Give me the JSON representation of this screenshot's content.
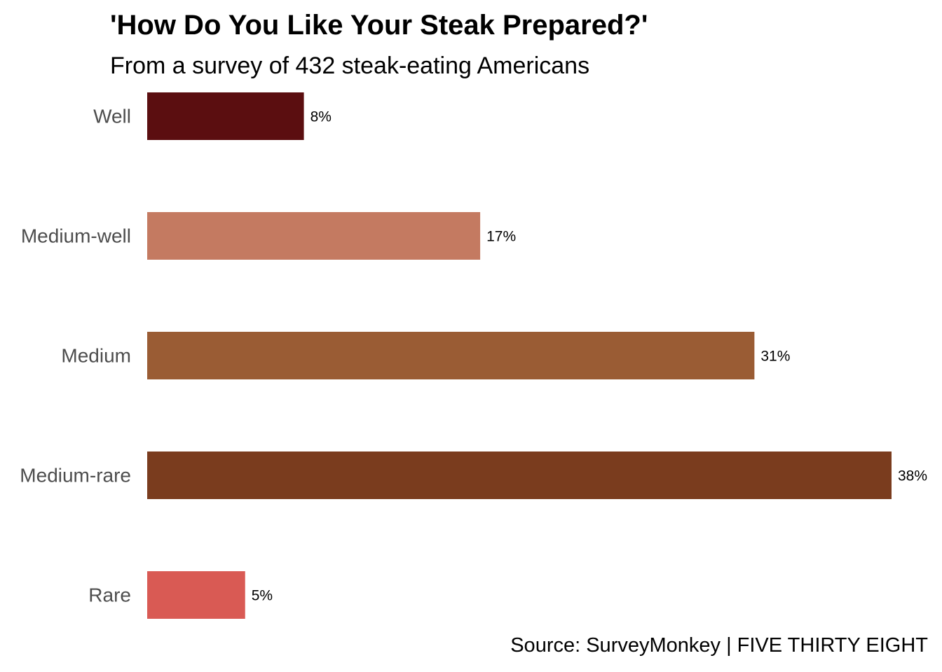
{
  "chart_data": {
    "type": "bar",
    "orientation": "horizontal",
    "title": "'How Do You Like Your Steak Prepared?'",
    "subtitle": "From a survey of 432 steak-eating Americans",
    "caption": "Source: SurveyMonkey | FIVE THIRTY EIGHT",
    "categories": [
      "Well",
      "Medium-well",
      "Medium",
      "Medium-rare",
      "Rare"
    ],
    "values": [
      8,
      17,
      31,
      38,
      5
    ],
    "value_labels": [
      "8%",
      "17%",
      "31%",
      "38%",
      "5%"
    ],
    "colors": [
      "#5b0e10",
      "#c47a61",
      "#9a5c34",
      "#7a3c1e",
      "#d95a54"
    ],
    "xlim": [
      0,
      38
    ],
    "grid": false,
    "legend": "none"
  }
}
